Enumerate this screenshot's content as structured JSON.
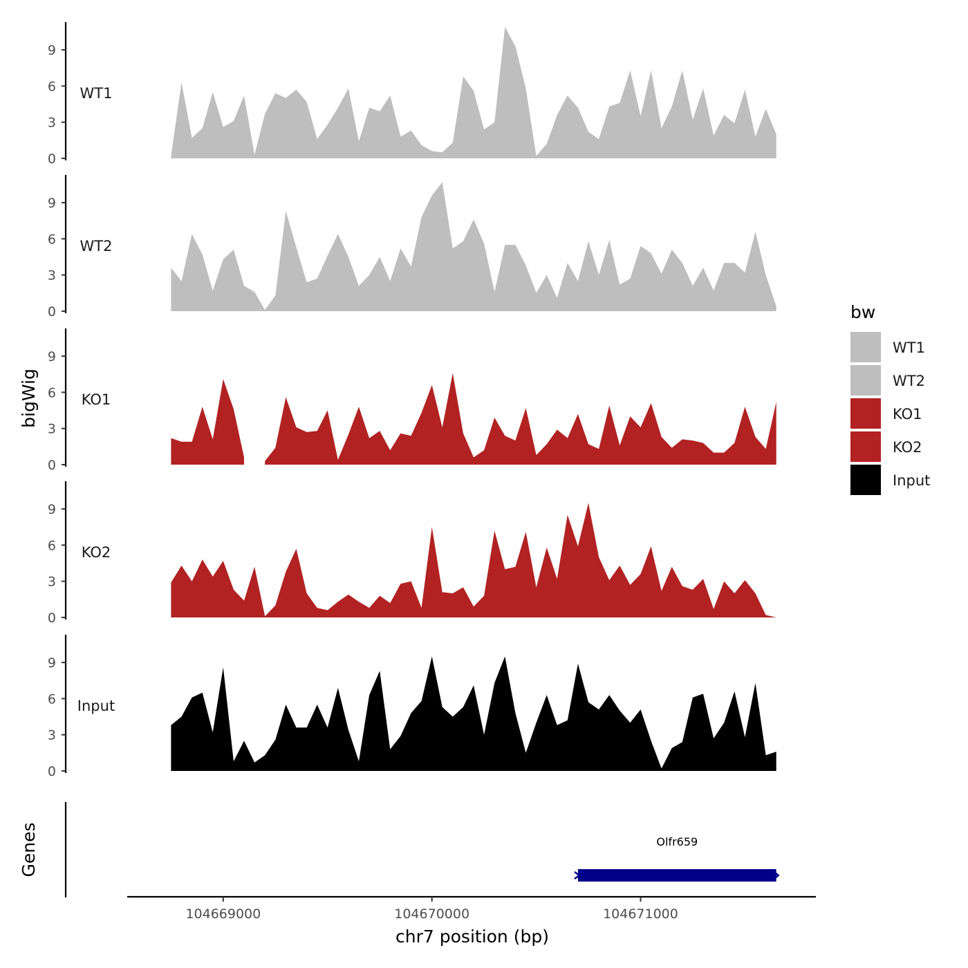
{
  "chart_data": {
    "type": "area",
    "chromosome": "chr7",
    "xlabel": "chr7 position (bp)",
    "ylabel_tracks": "bigWig",
    "ylabel_genes": "Genes",
    "xlim": [
      104668540,
      104671840
    ],
    "ylim": [
      0,
      11.3
    ],
    "x_ticks": [
      104669000,
      104670000,
      104671000
    ],
    "x_tick_labels": [
      "104669000",
      "104670000",
      "104671000"
    ],
    "y_ticks": [
      0,
      3,
      6,
      9
    ],
    "y_tick_labels": [
      "0",
      "3",
      "6",
      "9"
    ],
    "legend": {
      "title": "bw",
      "entries": [
        {
          "label": "WT1",
          "color": "#bebebe"
        },
        {
          "label": "WT2",
          "color": "#bebebe"
        },
        {
          "label": "KO1",
          "color": "#b22222"
        },
        {
          "label": "KO2",
          "color": "#b22222"
        },
        {
          "label": "Input",
          "color": "#000000"
        }
      ]
    },
    "x": [
      104668750,
      104668800,
      104668850,
      104668900,
      104668950,
      104669000,
      104669050,
      104669100,
      104669150,
      104669200,
      104669250,
      104669300,
      104669350,
      104669400,
      104669450,
      104669500,
      104669550,
      104669600,
      104669650,
      104669700,
      104669750,
      104669800,
      104669850,
      104669900,
      104669950,
      104670000,
      104670050,
      104670100,
      104670150,
      104670200,
      104670250,
      104670300,
      104670350,
      104670400,
      104670450,
      104670500,
      104670550,
      104670600,
      104670650,
      104670700,
      104670750,
      104670800,
      104670850,
      104670900,
      104670950,
      104671000,
      104671050,
      104671100,
      104671150,
      104671200,
      104671250,
      104671300,
      104671350,
      104671400,
      104671450,
      104671500,
      104671550,
      104671600,
      104671650
    ],
    "series": [
      {
        "name": "WT1",
        "color": "#bebebe",
        "values": [
          0.2,
          6.3,
          1.7,
          2.5,
          5.5,
          2.6,
          3.1,
          5.2,
          0.3,
          3.7,
          5.4,
          5.0,
          5.7,
          4.7,
          1.6,
          2.8,
          4.2,
          5.8,
          1.4,
          4.2,
          3.9,
          5.2,
          1.8,
          2.3,
          1.1,
          0.6,
          0.5,
          1.3,
          6.8,
          5.6,
          2.4,
          3.0,
          10.9,
          9.3,
          5.8,
          0.2,
          1.2,
          3.6,
          5.2,
          4.2,
          2.2,
          1.6,
          4.3,
          4.6,
          7.3,
          3.5,
          7.3,
          2.5,
          4.3,
          7.3,
          3.2,
          5.8,
          1.9,
          3.6,
          2.9,
          5.7,
          1.8,
          4.1,
          2.0
        ]
      },
      {
        "name": "WT2",
        "color": "#bebebe",
        "values": [
          3.6,
          2.5,
          6.4,
          4.7,
          1.7,
          4.3,
          5.1,
          2.1,
          1.6,
          0.1,
          1.3,
          8.3,
          5.3,
          2.4,
          2.7,
          4.6,
          6.4,
          4.5,
          2.1,
          3.0,
          4.5,
          2.5,
          5.2,
          3.7,
          7.8,
          9.6,
          10.7,
          5.2,
          5.8,
          7.6,
          5.6,
          1.6,
          5.5,
          5.5,
          3.8,
          1.5,
          3.0,
          1.1,
          4.0,
          2.5,
          5.8,
          3.0,
          5.9,
          2.2,
          2.7,
          5.4,
          4.8,
          3.1,
          5.1,
          4.0,
          2.1,
          3.6,
          1.7,
          4.0,
          4.0,
          3.2,
          6.6,
          3.0,
          0.4
        ]
      },
      {
        "name": "KO1",
        "color": "#b22222",
        "values": [
          2.2,
          1.9,
          1.9,
          4.8,
          2.1,
          7.1,
          4.6,
          0.6,
          null,
          0.3,
          1.4,
          5.6,
          3.1,
          2.7,
          2.8,
          4.5,
          0.4,
          2.5,
          4.8,
          2.2,
          2.8,
          1.2,
          2.6,
          2.4,
          4.3,
          6.6,
          3.1,
          7.6,
          2.6,
          0.6,
          1.2,
          3.9,
          2.4,
          2.0,
          4.7,
          0.8,
          1.7,
          2.9,
          2.2,
          4.2,
          1.7,
          1.3,
          4.9,
          1.6,
          4.0,
          3.1,
          5.1,
          2.3,
          1.4,
          2.1,
          2.0,
          1.8,
          1.0,
          1.0,
          1.8,
          4.8,
          2.3,
          1.3,
          5.2
        ]
      },
      {
        "name": "KO2",
        "color": "#b22222",
        "values": [
          2.9,
          4.3,
          3.0,
          4.8,
          3.4,
          4.7,
          2.3,
          1.4,
          4.2,
          0.1,
          1.0,
          3.8,
          5.7,
          2.0,
          0.8,
          0.6,
          1.3,
          1.9,
          1.3,
          0.8,
          1.8,
          1.2,
          2.8,
          3.0,
          0.8,
          7.5,
          2.1,
          2.0,
          2.5,
          0.9,
          1.8,
          7.2,
          4.0,
          4.2,
          7.1,
          2.5,
          5.8,
          3.2,
          8.5,
          5.9,
          9.5,
          5.0,
          3.1,
          4.3,
          2.7,
          3.6,
          5.9,
          2.2,
          4.2,
          2.6,
          2.3,
          3.2,
          0.7,
          3.0,
          2.0,
          3.1,
          2.0,
          0.2,
          0.0
        ]
      },
      {
        "name": "Input",
        "color": "#000000",
        "values": [
          3.8,
          4.5,
          6.1,
          6.5,
          3.2,
          8.6,
          0.8,
          2.5,
          0.7,
          1.3,
          2.6,
          5.5,
          3.6,
          3.6,
          5.5,
          3.6,
          6.9,
          3.4,
          0.8,
          6.3,
          8.3,
          1.8,
          2.9,
          4.8,
          5.8,
          9.5,
          5.3,
          4.5,
          5.3,
          7.1,
          3.0,
          7.3,
          9.5,
          4.8,
          1.5,
          4.0,
          6.3,
          3.8,
          4.2,
          8.9,
          5.7,
          5.1,
          6.3,
          5.0,
          4.0,
          5.1,
          2.5,
          0.2,
          1.9,
          2.4,
          6.1,
          6.4,
          2.7,
          4.0,
          6.6,
          2.8,
          7.3,
          1.3,
          1.6
        ]
      }
    ],
    "genes": [
      {
        "name": "Olfr659",
        "start": 104670700,
        "end": 104671650,
        "strand": "+",
        "color": "#00008b"
      }
    ]
  }
}
